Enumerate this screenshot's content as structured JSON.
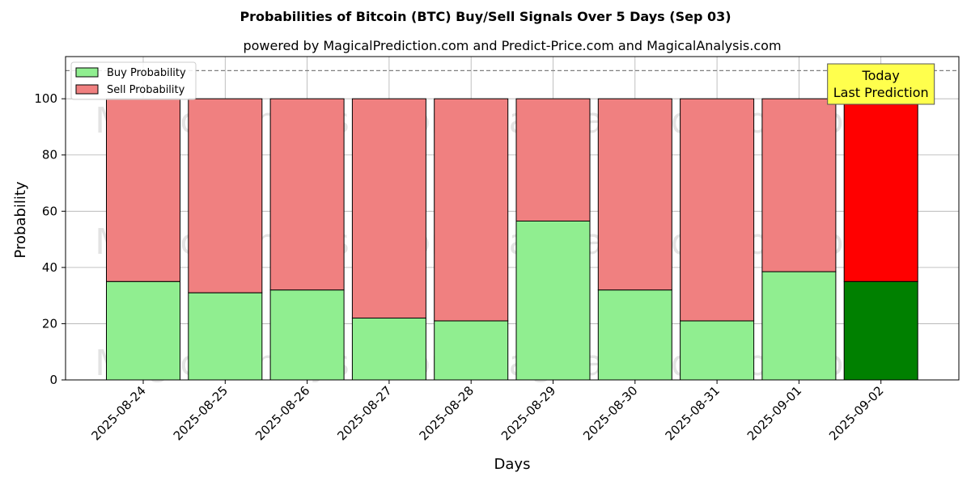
{
  "chart_data": {
    "type": "bar",
    "stacked": true,
    "title": "Probabilities of Bitcoin (BTC) Buy/Sell Signals Over 5 Days (Sep 03)",
    "subtitle": "powered by MagicalPrediction.com and Predict-Price.com and MagicalAnalysis.com",
    "xlabel": "Days",
    "ylabel": "Probability",
    "ylim": [
      0,
      115
    ],
    "yticks": [
      0,
      20,
      40,
      60,
      80,
      100
    ],
    "grid": true,
    "legend_position": "top-left",
    "reference_line": 110,
    "categories": [
      "2025-08-24",
      "2025-08-25",
      "2025-08-26",
      "2025-08-27",
      "2025-08-28",
      "2025-08-29",
      "2025-08-30",
      "2025-08-31",
      "2025-09-01",
      "2025-09-02"
    ],
    "series": [
      {
        "name": "Buy Probability",
        "color": "#90ee90",
        "highlight_color": "#008000",
        "values": [
          35,
          31,
          32,
          22,
          21,
          56.5,
          32,
          21,
          38.5,
          35
        ]
      },
      {
        "name": "Sell Probability",
        "color": "#f08080",
        "highlight_color": "#ff0000",
        "values": [
          65,
          69,
          68,
          78,
          79,
          43.5,
          68,
          79,
          61.5,
          65
        ]
      }
    ],
    "highlight_index": 9,
    "annotation": {
      "lines": [
        "Today",
        "Last Prediction"
      ],
      "background": "#ffff4d"
    },
    "watermarks": [
      "MagicalAnalysis.com",
      "MagicalPrediction.com"
    ]
  }
}
